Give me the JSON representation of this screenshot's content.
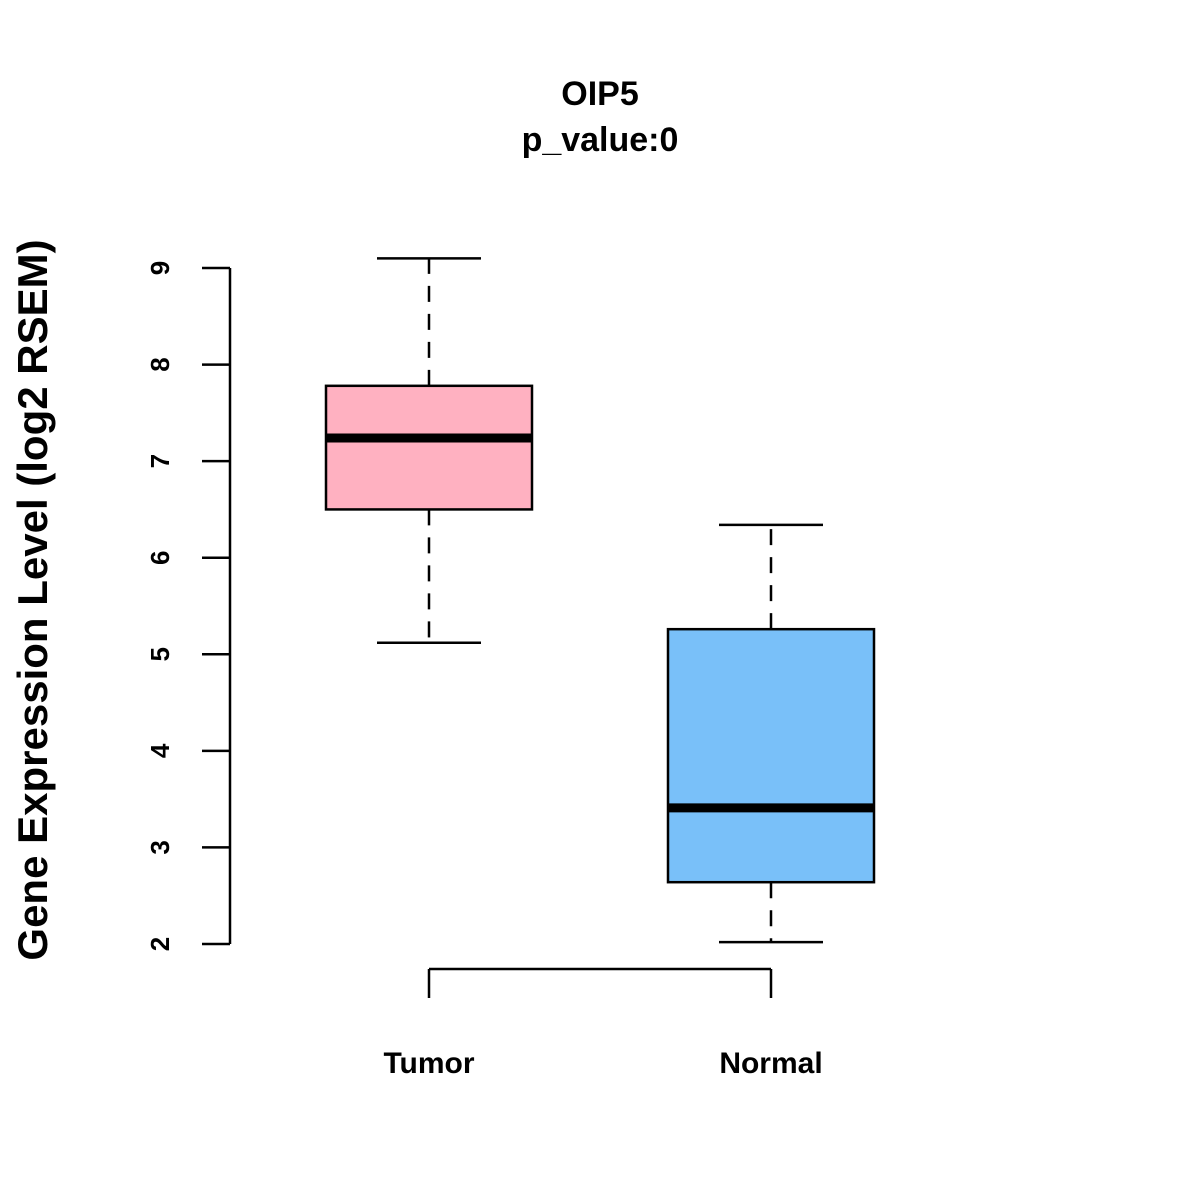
{
  "chart_data": {
    "type": "box",
    "title": "OIP5",
    "subtitle": "p_value:0",
    "xlabel": "",
    "ylabel": "Gene Expression Level (log2 RSEM)",
    "ylim": [
      2,
      9
    ],
    "yticks": [
      2,
      3,
      4,
      5,
      6,
      7,
      8,
      9
    ],
    "grid": false,
    "categories": [
      "Tumor",
      "Normal"
    ],
    "series": [
      {
        "name": "Tumor",
        "color": "#FFB1C1",
        "whisker_low": 5.12,
        "q1": 6.5,
        "median": 7.24,
        "q3": 7.78,
        "whisker_high": 9.1
      },
      {
        "name": "Normal",
        "color": "#79C0F9",
        "whisker_low": 2.02,
        "q1": 2.64,
        "median": 3.41,
        "q3": 5.26,
        "whisker_high": 6.34
      }
    ]
  }
}
